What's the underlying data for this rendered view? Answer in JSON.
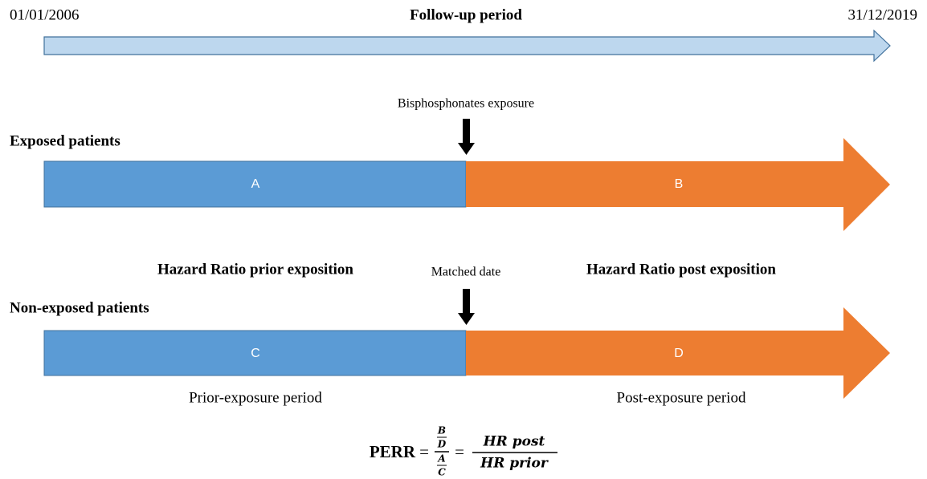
{
  "timeline": {
    "start_date": "01/01/2006",
    "title": "Follow-up period",
    "end_date": "31/12/2019"
  },
  "exposed": {
    "event": "Bisphosphonates exposure",
    "label": "Exposed patients",
    "prior_segment": "A",
    "post_segment": "B"
  },
  "hazard_ratios": {
    "prior": "Hazard Ratio prior exposition",
    "post": "Hazard Ratio post exposition"
  },
  "non_exposed": {
    "event": "Matched date",
    "label": "Non-exposed patients",
    "prior_segment": "C",
    "post_segment": "D"
  },
  "periods": {
    "prior": "Prior-exposure period",
    "post": "Post-exposure period"
  },
  "formula": {
    "lhs": "PERR",
    "equals": "=",
    "b": "B",
    "d": "D",
    "a": "A",
    "c": "C",
    "numerator": "HR post",
    "denominator": "HR prior"
  }
}
